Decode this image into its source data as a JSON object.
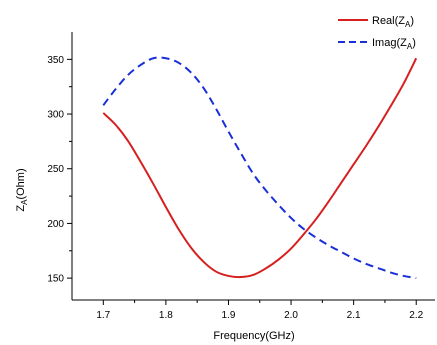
{
  "chart_data": {
    "type": "line",
    "title": "",
    "xlabel": "Frequency(GHz)",
    "ylabel": {
      "main": "Z",
      "sub": "A",
      "tail": "(Ohm)"
    },
    "xlim": [
      1.65,
      2.23
    ],
    "ylim": [
      130,
      375
    ],
    "xticks": [
      1.7,
      1.8,
      1.9,
      2.0,
      2.1,
      2.2
    ],
    "xtick_labels": [
      "1.7",
      "1.8",
      "1.9",
      "2.0",
      "2.1",
      "2.2"
    ],
    "yticks": [
      150,
      200,
      250,
      300,
      350
    ],
    "ytick_labels": [
      "150",
      "200",
      "250",
      "300",
      "350"
    ],
    "grid": false,
    "legend_position": "top-right",
    "series": [
      {
        "name": {
          "main": "Real(Z",
          "sub": "A",
          "tail": ")"
        },
        "color": "#d62020",
        "dash": "solid",
        "x": [
          1.7,
          1.72,
          1.74,
          1.76,
          1.78,
          1.8,
          1.82,
          1.84,
          1.86,
          1.88,
          1.9,
          1.92,
          1.94,
          1.96,
          1.98,
          2.0,
          2.02,
          2.04,
          2.06,
          2.08,
          2.1,
          2.12,
          2.14,
          2.16,
          2.18,
          2.2
        ],
        "y": [
          301,
          290,
          275,
          256,
          236,
          215,
          195,
          178,
          165,
          156,
          152,
          151,
          153,
          159,
          167,
          177,
          190,
          204,
          220,
          237,
          254,
          271,
          289,
          308,
          328,
          351
        ]
      },
      {
        "name": {
          "main": "Imag(Z",
          "sub": "A",
          "tail": ")"
        },
        "color": "#1a2fd6",
        "dash": "dashed",
        "x": [
          1.7,
          1.72,
          1.74,
          1.76,
          1.78,
          1.8,
          1.82,
          1.84,
          1.86,
          1.88,
          1.9,
          1.92,
          1.94,
          1.96,
          1.98,
          2.0,
          2.02,
          2.04,
          2.06,
          2.08,
          2.1,
          2.12,
          2.14,
          2.16,
          2.18,
          2.2
        ],
        "y": [
          308,
          323,
          336,
          345,
          351,
          351,
          347,
          338,
          324,
          305,
          284,
          264,
          245,
          230,
          217,
          205,
          195,
          187,
          180,
          174,
          168,
          163,
          159,
          155,
          152,
          150
        ]
      }
    ]
  }
}
